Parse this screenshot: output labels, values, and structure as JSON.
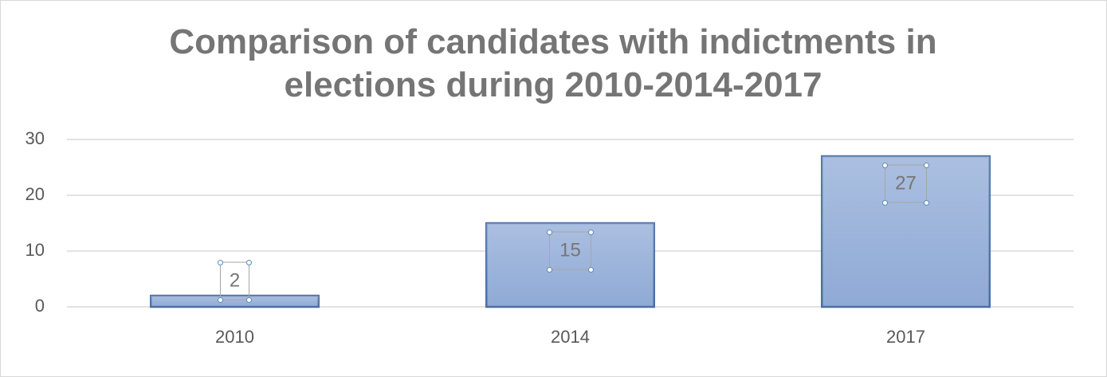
{
  "chart_data": {
    "type": "bar",
    "title": "Comparison of candidates with indictments in elections during 2010-2014-2017",
    "categories": [
      "2010",
      "2014",
      "2017"
    ],
    "values": [
      2,
      15,
      27
    ],
    "color": "#8faad6",
    "ylim": [
      0,
      30
    ],
    "yticks": [
      0,
      10,
      20,
      30
    ],
    "grid": true
  }
}
